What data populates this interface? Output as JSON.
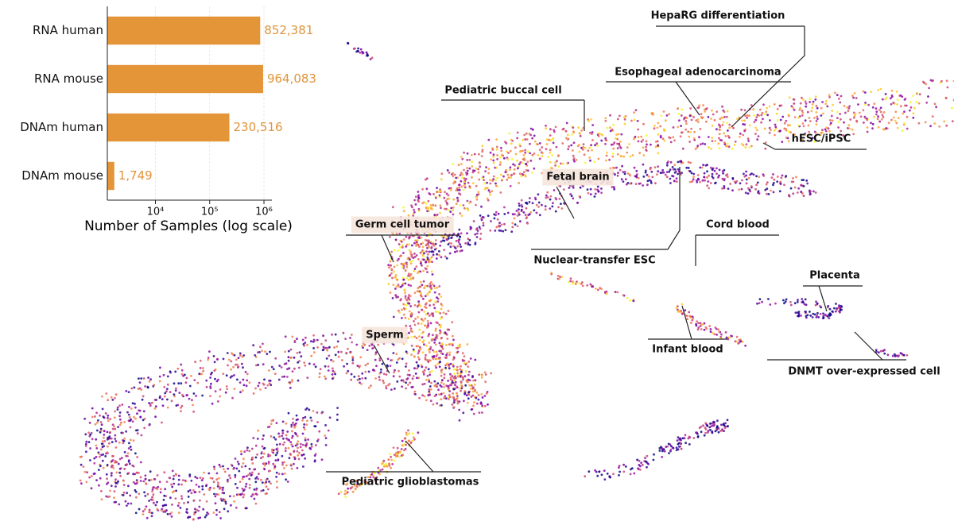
{
  "chart_data": {
    "type": "bar",
    "orientation": "horizontal",
    "categories": [
      "RNA human",
      "RNA mouse",
      "DNAm human",
      "DNAm mouse"
    ],
    "values": [
      852381,
      964083,
      230516,
      1749
    ],
    "value_labels": [
      "852,381",
      "964,083",
      "230,516",
      "1,749"
    ],
    "color": "#e39538",
    "log_scale": true,
    "xlim": [
      1300,
      1400000
    ],
    "xticks": [
      {
        "value": 10000,
        "label": "10⁴"
      },
      {
        "value": 100000,
        "label": "10⁵"
      },
      {
        "value": 1000000,
        "label": "10⁶"
      }
    ],
    "x_label": "Number of Samples (log scale)"
  },
  "embedding": {
    "annotations": [
      "HepaRG differentiation",
      "Esophageal adenocarcinoma",
      "Pediatric buccal cell",
      "hESC/iPSC",
      "Fetal brain",
      "Germ cell tumor",
      "Nuclear-transfer ESC",
      "Cord blood",
      "Placenta",
      "Sperm",
      "Infant blood",
      "DNMT over-expressed cell",
      "Pediatric glioblastomas"
    ]
  }
}
